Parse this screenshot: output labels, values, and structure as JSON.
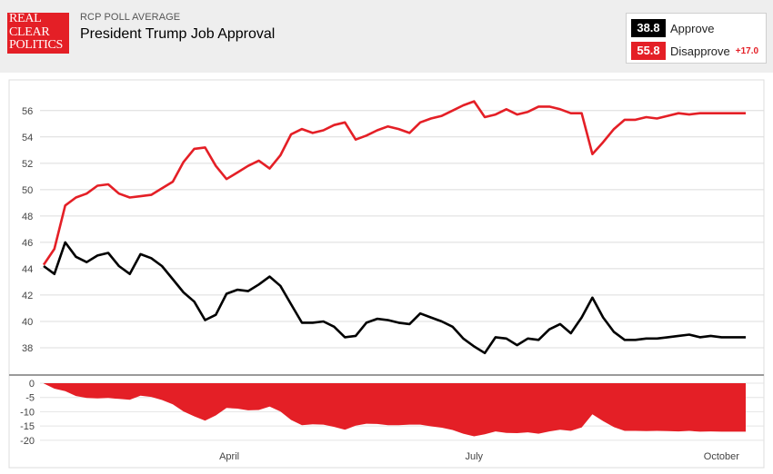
{
  "header": {
    "logo_lines": [
      "REAL",
      "CLEAR",
      "POLITICS"
    ],
    "kicker": "RCP POLL AVERAGE",
    "title": "President Trump Job Approval"
  },
  "legend": {
    "approve": {
      "value": "38.8",
      "label": "Approve",
      "color": "#000000"
    },
    "disapprove": {
      "value": "55.8",
      "label": "Disapprove",
      "spread": "+17.0",
      "color": "#e41f26"
    }
  },
  "chart_data": [
    {
      "type": "line",
      "title": "",
      "xlabel": "",
      "ylabel": "",
      "x_ticks": [
        {
          "label": "April",
          "day": 70
        },
        {
          "label": "July",
          "day": 161
        },
        {
          "label": "October",
          "day": 253
        }
      ],
      "x_range": [
        1,
        262
      ],
      "ylim": [
        36,
        57.5
      ],
      "y_ticks": [
        38,
        40,
        42,
        44,
        46,
        48,
        50,
        52,
        54,
        56
      ],
      "grid": true,
      "series": [
        {
          "name": "Approve",
          "color": "#000000",
          "x": [
            1,
            5,
            9,
            13,
            17,
            21,
            25,
            29,
            33,
            37,
            41,
            45,
            49,
            53,
            57,
            61,
            65,
            69,
            73,
            77,
            81,
            85,
            89,
            93,
            97,
            101,
            105,
            109,
            113,
            117,
            121,
            125,
            129,
            133,
            137,
            141,
            145,
            149,
            153,
            157,
            161,
            165,
            169,
            173,
            177,
            181,
            185,
            189,
            193,
            197,
            201,
            205,
            209,
            213,
            217,
            221,
            225,
            229,
            233,
            237,
            241,
            245,
            249,
            253,
            257,
            262
          ],
          "values": [
            44.2,
            43.6,
            46.0,
            44.9,
            44.5,
            45.0,
            45.2,
            44.2,
            43.6,
            45.1,
            44.8,
            44.2,
            43.2,
            42.2,
            41.5,
            40.1,
            40.5,
            42.1,
            42.4,
            42.3,
            42.8,
            43.4,
            42.7,
            41.3,
            39.9,
            39.9,
            40.0,
            39.6,
            38.8,
            38.9,
            39.9,
            40.2,
            40.1,
            39.9,
            39.8,
            40.6,
            40.3,
            40.0,
            39.6,
            38.7,
            38.1,
            37.6,
            38.8,
            38.7,
            38.2,
            38.7,
            38.6,
            39.4,
            39.8,
            39.1,
            40.3,
            41.8,
            40.3,
            39.2,
            38.6,
            38.6,
            38.7,
            38.7,
            38.8,
            38.9,
            39.0,
            38.8,
            38.9,
            38.8,
            38.8,
            38.8
          ]
        },
        {
          "name": "Disapprove",
          "color": "#e41f26",
          "x": [
            1,
            5,
            9,
            13,
            17,
            21,
            25,
            29,
            33,
            37,
            41,
            45,
            49,
            53,
            57,
            61,
            65,
            69,
            73,
            77,
            81,
            85,
            89,
            93,
            97,
            101,
            105,
            109,
            113,
            117,
            121,
            125,
            129,
            133,
            137,
            141,
            145,
            149,
            153,
            157,
            161,
            165,
            169,
            173,
            177,
            181,
            185,
            189,
            193,
            197,
            201,
            205,
            209,
            213,
            217,
            221,
            225,
            229,
            233,
            237,
            241,
            245,
            249,
            253,
            257,
            262
          ],
          "values": [
            44.3,
            45.5,
            48.8,
            49.4,
            49.7,
            50.3,
            50.4,
            49.7,
            49.4,
            49.5,
            49.6,
            50.1,
            50.6,
            52.1,
            53.1,
            53.2,
            51.8,
            50.8,
            51.3,
            51.8,
            52.2,
            51.6,
            52.6,
            54.2,
            54.6,
            54.3,
            54.5,
            54.9,
            55.1,
            53.8,
            54.1,
            54.5,
            54.8,
            54.6,
            54.3,
            55.1,
            55.4,
            55.6,
            56.0,
            56.4,
            56.7,
            55.5,
            55.7,
            56.1,
            55.7,
            55.9,
            56.3,
            56.3,
            56.1,
            55.8,
            55.8,
            52.7,
            53.6,
            54.6,
            55.3,
            55.3,
            55.5,
            55.4,
            55.6,
            55.8,
            55.7,
            55.8,
            55.8,
            55.8,
            55.8,
            55.8
          ]
        }
      ]
    },
    {
      "type": "area",
      "title": "",
      "xlabel": "",
      "ylabel": "",
      "ylim": [
        -21,
        0
      ],
      "y_ticks": [
        0,
        -5,
        -10,
        -15,
        -20
      ],
      "series": [
        {
          "name": "Spread",
          "color": "#e41f26",
          "x": [
            1,
            5,
            9,
            13,
            17,
            21,
            25,
            29,
            33,
            37,
            41,
            45,
            49,
            53,
            57,
            61,
            65,
            69,
            73,
            77,
            81,
            85,
            89,
            93,
            97,
            101,
            105,
            109,
            113,
            117,
            121,
            125,
            129,
            133,
            137,
            141,
            145,
            149,
            153,
            157,
            161,
            165,
            169,
            173,
            177,
            181,
            185,
            189,
            193,
            197,
            201,
            205,
            209,
            213,
            217,
            221,
            225,
            229,
            233,
            237,
            241,
            245,
            249,
            253,
            257,
            262
          ],
          "values": [
            -0.1,
            -1.9,
            -2.8,
            -4.5,
            -5.2,
            -5.3,
            -5.2,
            -5.5,
            -5.8,
            -4.4,
            -4.8,
            -5.9,
            -7.4,
            -9.9,
            -11.6,
            -13.1,
            -11.3,
            -8.7,
            -8.9,
            -9.5,
            -9.4,
            -8.2,
            -9.9,
            -12.9,
            -14.7,
            -14.4,
            -14.5,
            -15.3,
            -16.3,
            -14.9,
            -14.2,
            -14.3,
            -14.7,
            -14.7,
            -14.5,
            -14.5,
            -15.1,
            -15.6,
            -16.4,
            -17.7,
            -18.6,
            -17.9,
            -16.9,
            -17.4,
            -17.5,
            -17.2,
            -17.7,
            -16.9,
            -16.3,
            -16.7,
            -15.5,
            -10.9,
            -13.3,
            -15.4,
            -16.7,
            -16.7,
            -16.8,
            -16.7,
            -16.8,
            -16.9,
            -16.7,
            -17.0,
            -16.9,
            -17.0,
            -17.0,
            -17.0
          ]
        }
      ]
    }
  ]
}
